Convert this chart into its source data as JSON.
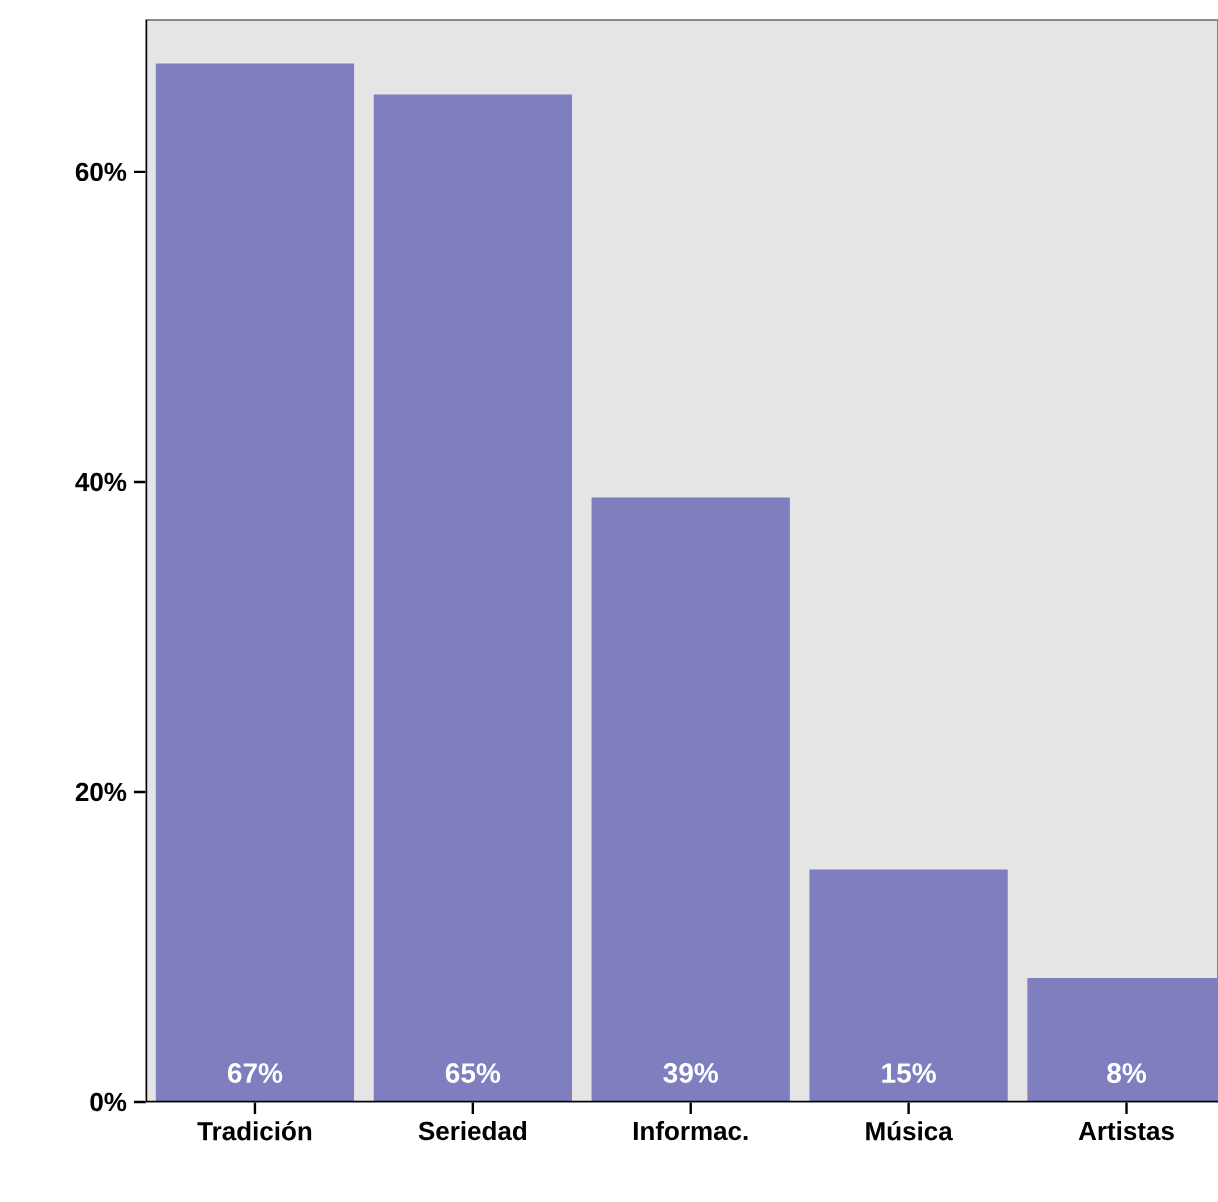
{
  "chart_data": {
    "type": "bar",
    "categories": [
      "Tradición",
      "Seriedad",
      "Informac.",
      "Música",
      "Artistas"
    ],
    "values": [
      67,
      65,
      39,
      15,
      8
    ],
    "value_labels": [
      "67%",
      "65%",
      "39%",
      "15%",
      "8%"
    ],
    "color": "#7f7fbf",
    "ylim": [
      0,
      69.8
    ],
    "yticks": [
      {
        "value": 0,
        "label": "0%"
      },
      {
        "value": 20,
        "label": "20%"
      },
      {
        "value": 40,
        "label": "40%"
      },
      {
        "value": 60,
        "label": "60%"
      }
    ],
    "grid": false
  }
}
